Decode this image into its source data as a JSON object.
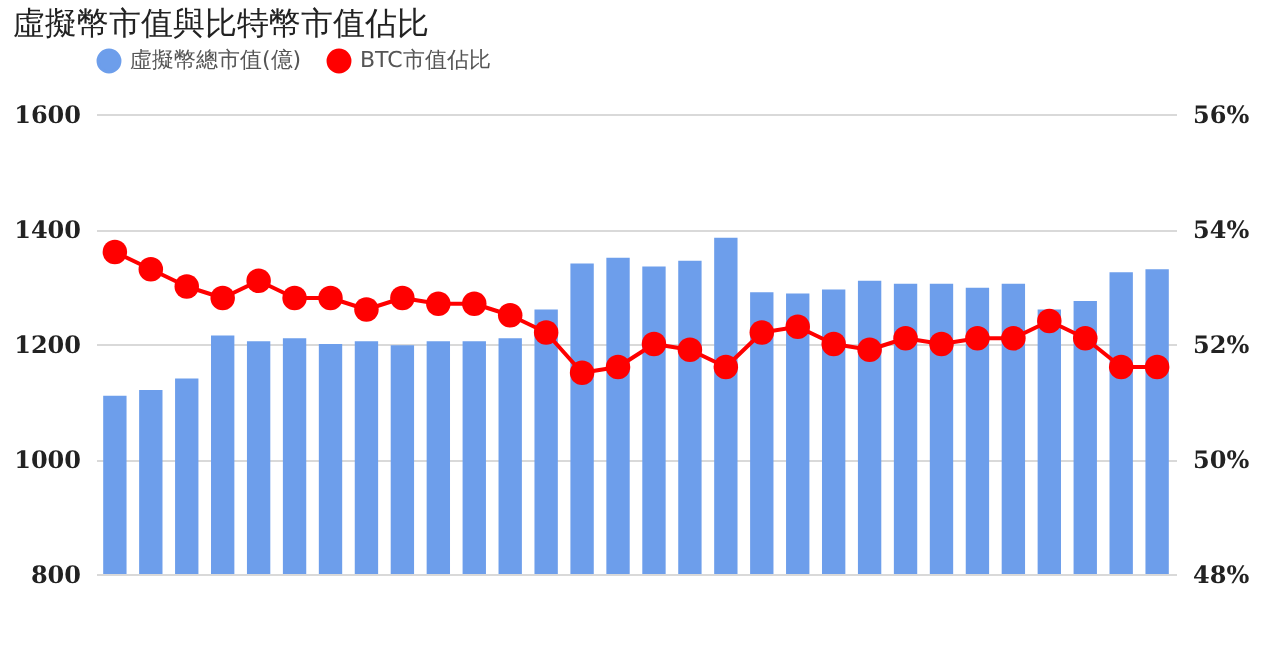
{
  "chart_data": {
    "type": "bar",
    "title": "虛擬幣市值與比特幣市值佔比",
    "categories": [
      null,
      null,
      null,
      null,
      null,
      null,
      null,
      null,
      null,
      null,
      null,
      null,
      null,
      null,
      null,
      null,
      null,
      null,
      null,
      null,
      null,
      null,
      null,
      null,
      null,
      null,
      null,
      null,
      null,
      null
    ],
    "series": [
      {
        "name": "虛擬幣總市值(億)",
        "color": "#6d9eeb",
        "values": [
          1110,
          1120,
          1140,
          1215,
          1205,
          1210,
          1200,
          1205,
          1198,
          1205,
          1205,
          1210,
          1260,
          1340,
          1350,
          1335,
          1345,
          1385,
          1290,
          1288,
          1295,
          1310,
          1305,
          1305,
          1298,
          1305,
          1260,
          1275,
          1325,
          1330
        ]
      },
      {
        "name": "BTC市值佔比",
        "type": "line",
        "axis": "y2",
        "color": "#ff0000",
        "values": [
          53.6,
          53.3,
          53.0,
          52.8,
          53.1,
          52.8,
          52.8,
          52.6,
          52.8,
          52.7,
          52.7,
          52.5,
          52.2,
          51.5,
          51.6,
          52.0,
          51.9,
          51.6,
          52.2,
          52.3,
          52.0,
          51.9,
          52.1,
          52.0,
          52.1,
          52.1,
          52.4,
          52.1,
          51.6,
          51.6
        ]
      }
    ],
    "ylim": [
      800,
      1600
    ],
    "yticks": [
      800,
      1000,
      1200,
      1400,
      1600
    ],
    "y2lim": [
      48,
      56
    ],
    "y2ticks": [
      {
        "value": 48,
        "label": "48%"
      },
      {
        "value": 50,
        "label": "50%"
      },
      {
        "value": 52,
        "label": "52%"
      },
      {
        "value": 54,
        "label": "54%"
      },
      {
        "value": 56,
        "label": "56%"
      }
    ],
    "grid": "y",
    "legend": "top",
    "marker": "circle"
  }
}
